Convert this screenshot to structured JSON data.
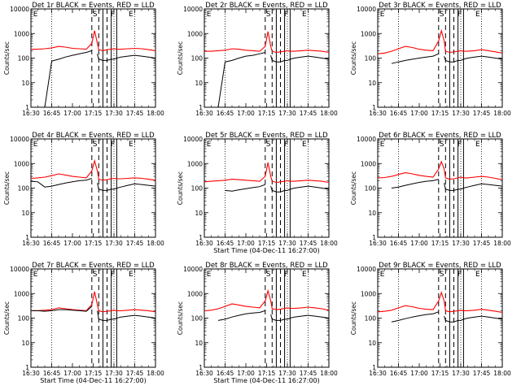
{
  "common": {
    "x_tick_labels": [
      "16:30",
      "16:45",
      "17:00",
      "17:15",
      "17:30",
      "17:45",
      "18:00"
    ],
    "x_ticks_minutes": [
      0,
      15,
      30,
      45,
      60,
      75,
      90
    ],
    "y_tick_labels": [
      "1",
      "10",
      "100",
      "1000",
      "10000"
    ],
    "xlabel": "Start Time (04-Dec-11 16:27:00)",
    "ylabel": "Counts/sec",
    "xlim_minutes": [
      0,
      90
    ],
    "ylim": [
      1,
      10000
    ],
    "yscale": "log",
    "colors": {
      "events": "#000000",
      "lld": "#ff0000",
      "background": "#ffffff"
    },
    "dotted_lines_minutes": [
      15,
      60,
      75
    ],
    "dashed_lines_minutes": [
      44,
      49,
      55
    ],
    "solid_lines_minutes": [
      52,
      58,
      62
    ]
  },
  "panels": [
    {
      "title": "Det 1r BLACK = Events, RED = LLD",
      "letters": [
        "E",
        "S",
        "F",
        "E"
      ],
      "show_xlabel": false
    },
    {
      "title": "Det 2r BLACK = Events, RED = LLD",
      "letters": [
        "E",
        "S",
        "F",
        "E"
      ],
      "show_xlabel": false
    },
    {
      "title": "Det 3r BLACK = Events, RED = LLD",
      "letters": [
        "E",
        "S",
        "F",
        "E"
      ],
      "show_xlabel": false
    },
    {
      "title": "Det 4r BLACK = Events, RED = LLD",
      "letters": [
        "E",
        "S",
        "F",
        "E"
      ],
      "show_xlabel": false
    },
    {
      "title": "Det 5r BLACK = Events, RED = LLD",
      "letters": [
        "E",
        "S",
        "F",
        "E"
      ],
      "show_xlabel": true
    },
    {
      "title": "Det 6r BLACK = Events, RED = LLD",
      "letters": [
        "E",
        "S",
        "F",
        "E"
      ],
      "show_xlabel": false
    },
    {
      "title": "Det 7r BLACK = Events, RED = LLD",
      "letters": [
        "E",
        "S",
        "F",
        "E"
      ],
      "show_xlabel": true
    },
    {
      "title": "Det 8r BLACK = Events, RED = LLD",
      "letters": [
        "E",
        "S",
        "F",
        "E"
      ],
      "show_xlabel": true
    },
    {
      "title": "Det 9r BLACK = Events, RED = LLD",
      "letters": [
        "E",
        "S",
        "F",
        "E"
      ],
      "show_xlabel": false
    }
  ],
  "chart_data": [
    {
      "type": "line",
      "title": "Det 1r BLACK = Events, RED = LLD",
      "xlabel": "",
      "ylabel": "Counts/sec",
      "ylim": [
        1,
        10000
      ],
      "yscale": "log",
      "x_minutes": [
        0,
        5,
        10,
        15,
        20,
        25,
        30,
        35,
        40,
        44,
        46,
        48,
        49,
        52,
        55,
        58,
        60,
        62,
        65,
        70,
        75,
        80,
        85,
        90
      ],
      "series": [
        {
          "color": "#ff0000",
          "values": [
            230,
            230,
            240,
            260,
            300,
            280,
            250,
            240,
            230,
            400,
            1300,
            400,
            220,
            200,
            220,
            230,
            240,
            230,
            230,
            240,
            250,
            240,
            220,
            200
          ]
        },
        {
          "color": "#000000",
          "values": [
            1,
            1,
            1,
            75,
            90,
            110,
            130,
            150,
            170,
            200,
            null,
            150,
            90,
            80,
            80,
            90,
            90,
            100,
            110,
            120,
            130,
            120,
            110,
            100
          ]
        }
      ]
    },
    {
      "type": "line",
      "title": "Det 2r BLACK = Events, RED = LLD",
      "xlabel": "",
      "ylabel": "Counts/sec",
      "ylim": [
        1,
        10000
      ],
      "yscale": "log",
      "x_minutes": [
        0,
        5,
        10,
        15,
        20,
        25,
        30,
        35,
        40,
        44,
        46,
        48,
        49,
        52,
        55,
        58,
        60,
        62,
        65,
        70,
        75,
        80,
        85,
        90
      ],
      "series": [
        {
          "color": "#ff0000",
          "values": [
            190,
            190,
            200,
            210,
            240,
            230,
            210,
            200,
            190,
            300,
            1200,
            300,
            190,
            170,
            180,
            190,
            200,
            190,
            190,
            200,
            210,
            200,
            190,
            170
          ]
        },
        {
          "color": "#000000",
          "values": [
            1,
            1,
            1,
            70,
            80,
            100,
            120,
            130,
            150,
            170,
            null,
            130,
            80,
            70,
            70,
            80,
            80,
            90,
            100,
            110,
            120,
            110,
            100,
            90
          ]
        }
      ]
    },
    {
      "type": "line",
      "title": "Det 3r BLACK = Events, RED = LLD",
      "xlabel": "",
      "ylabel": "Counts/sec",
      "ylim": [
        1,
        10000
      ],
      "yscale": "log",
      "x_minutes": [
        0,
        5,
        10,
        15,
        20,
        25,
        30,
        35,
        40,
        44,
        46,
        48,
        49,
        52,
        55,
        58,
        60,
        62,
        65,
        70,
        75,
        80,
        85,
        90
      ],
      "series": [
        {
          "color": "#ff0000",
          "values": [
            150,
            160,
            190,
            240,
            300,
            270,
            230,
            210,
            200,
            500,
            1300,
            500,
            190,
            170,
            180,
            190,
            200,
            190,
            190,
            200,
            220,
            200,
            180,
            160
          ]
        },
        {
          "color": "#000000",
          "values": [
            null,
            null,
            60,
            70,
            80,
            90,
            100,
            110,
            120,
            150,
            null,
            120,
            80,
            70,
            70,
            80,
            80,
            90,
            100,
            110,
            120,
            110,
            100,
            90
          ]
        }
      ]
    },
    {
      "type": "line",
      "title": "Det 4r BLACK = Events, RED = LLD",
      "xlabel": "",
      "ylabel": "Counts/sec",
      "ylim": [
        1,
        10000
      ],
      "yscale": "log",
      "x_minutes": [
        0,
        5,
        10,
        15,
        20,
        25,
        30,
        35,
        40,
        44,
        46,
        48,
        49,
        52,
        55,
        58,
        60,
        62,
        65,
        70,
        75,
        80,
        85,
        90
      ],
      "series": [
        {
          "color": "#ff0000",
          "values": [
            250,
            260,
            280,
            320,
            380,
            340,
            300,
            280,
            260,
            500,
            1300,
            500,
            230,
            210,
            220,
            240,
            250,
            240,
            240,
            250,
            260,
            250,
            230,
            210
          ]
        },
        {
          "color": "#000000",
          "values": [
            190,
            180,
            110,
            120,
            140,
            160,
            180,
            200,
            210,
            250,
            null,
            160,
            90,
            80,
            80,
            90,
            90,
            100,
            110,
            130,
            150,
            140,
            130,
            120
          ]
        }
      ]
    },
    {
      "type": "line",
      "title": "Det 5r BLACK = Events, RED = LLD",
      "xlabel": "Start Time (04-Dec-11 16:27:00)",
      "ylabel": "Counts/sec",
      "ylim": [
        1,
        10000
      ],
      "yscale": "log",
      "x_minutes": [
        0,
        5,
        10,
        15,
        20,
        25,
        30,
        35,
        40,
        44,
        46,
        48,
        49,
        52,
        55,
        58,
        60,
        62,
        65,
        70,
        75,
        80,
        85,
        90
      ],
      "series": [
        {
          "color": "#ff0000",
          "values": [
            180,
            190,
            200,
            210,
            230,
            220,
            210,
            200,
            190,
            300,
            1100,
            300,
            190,
            170,
            180,
            190,
            200,
            190,
            190,
            200,
            210,
            200,
            190,
            170
          ]
        },
        {
          "color": "#000000",
          "values": [
            null,
            null,
            null,
            80,
            75,
            85,
            95,
            105,
            115,
            140,
            null,
            120,
            80,
            70,
            70,
            80,
            80,
            90,
            100,
            110,
            120,
            110,
            100,
            90
          ]
        }
      ]
    },
    {
      "type": "line",
      "title": "Det 6r BLACK = Events, RED = LLD",
      "xlabel": "",
      "ylabel": "Counts/sec",
      "ylim": [
        1,
        10000
      ],
      "yscale": "log",
      "x_minutes": [
        0,
        5,
        10,
        15,
        20,
        25,
        30,
        35,
        40,
        44,
        46,
        48,
        49,
        52,
        55,
        58,
        60,
        62,
        65,
        70,
        75,
        80,
        85,
        90
      ],
      "series": [
        {
          "color": "#ff0000",
          "values": [
            260,
            270,
            300,
            360,
            420,
            380,
            330,
            300,
            280,
            600,
            1200,
            600,
            260,
            230,
            240,
            260,
            280,
            260,
            260,
            280,
            300,
            280,
            250,
            220
          ]
        },
        {
          "color": "#000000",
          "values": [
            null,
            null,
            100,
            110,
            130,
            150,
            170,
            190,
            200,
            230,
            null,
            160,
            90,
            80,
            80,
            90,
            90,
            100,
            110,
            130,
            150,
            140,
            130,
            120
          ]
        }
      ]
    },
    {
      "type": "line",
      "title": "Det 7r BLACK = Events, RED = LLD",
      "xlabel": "Start Time (04-Dec-11 16:27:00)",
      "ylabel": "Counts/sec",
      "ylim": [
        1,
        10000
      ],
      "yscale": "log",
      "x_minutes": [
        0,
        5,
        10,
        15,
        20,
        25,
        30,
        35,
        40,
        44,
        46,
        48,
        49,
        52,
        55,
        58,
        60,
        62,
        65,
        70,
        75,
        80,
        85,
        90
      ],
      "series": [
        {
          "color": "#ff0000",
          "values": [
            200,
            200,
            210,
            220,
            260,
            240,
            220,
            210,
            200,
            350,
            1200,
            350,
            200,
            180,
            190,
            200,
            210,
            200,
            200,
            210,
            220,
            210,
            200,
            180
          ]
        },
        {
          "color": "#000000",
          "values": [
            200,
            200,
            190,
            200,
            220,
            220,
            210,
            200,
            190,
            300,
            null,
            200,
            90,
            80,
            80,
            90,
            90,
            100,
            110,
            120,
            130,
            120,
            110,
            100
          ]
        }
      ]
    },
    {
      "type": "line",
      "title": "Det 8r BLACK = Events, RED = LLD",
      "xlabel": "Start Time (04-Dec-11 16:27:00)",
      "ylabel": "Counts/sec",
      "ylim": [
        1,
        10000
      ],
      "yscale": "log",
      "x_minutes": [
        0,
        5,
        10,
        15,
        20,
        25,
        30,
        35,
        40,
        44,
        46,
        48,
        49,
        52,
        55,
        58,
        60,
        62,
        65,
        70,
        75,
        80,
        85,
        90
      ],
      "series": [
        {
          "color": "#ff0000",
          "values": [
            200,
            210,
            240,
            300,
            380,
            340,
            300,
            280,
            260,
            500,
            1300,
            500,
            240,
            220,
            230,
            250,
            260,
            250,
            250,
            260,
            280,
            260,
            240,
            210
          ]
        },
        {
          "color": "#000000",
          "values": [
            null,
            null,
            80,
            90,
            110,
            130,
            150,
            160,
            170,
            200,
            null,
            140,
            90,
            80,
            80,
            90,
            90,
            100,
            110,
            120,
            130,
            120,
            110,
            100
          ]
        }
      ]
    },
    {
      "type": "line",
      "title": "Det 9r BLACK = Events, RED = LLD",
      "xlabel": "",
      "ylabel": "Counts/sec",
      "ylim": [
        1,
        10000
      ],
      "yscale": "log",
      "x_minutes": [
        0,
        5,
        10,
        15,
        20,
        25,
        30,
        35,
        40,
        44,
        46,
        48,
        49,
        52,
        55,
        58,
        60,
        62,
        65,
        70,
        75,
        80,
        85,
        90
      ],
      "series": [
        {
          "color": "#ff0000",
          "values": [
            180,
            190,
            210,
            260,
            320,
            290,
            250,
            230,
            220,
            500,
            1100,
            500,
            200,
            180,
            190,
            200,
            210,
            200,
            200,
            210,
            230,
            210,
            190,
            170
          ]
        },
        {
          "color": "#000000",
          "values": [
            null,
            null,
            70,
            80,
            95,
            110,
            125,
            140,
            150,
            180,
            null,
            120,
            80,
            70,
            70,
            80,
            80,
            90,
            100,
            110,
            120,
            110,
            100,
            90
          ]
        }
      ]
    }
  ]
}
